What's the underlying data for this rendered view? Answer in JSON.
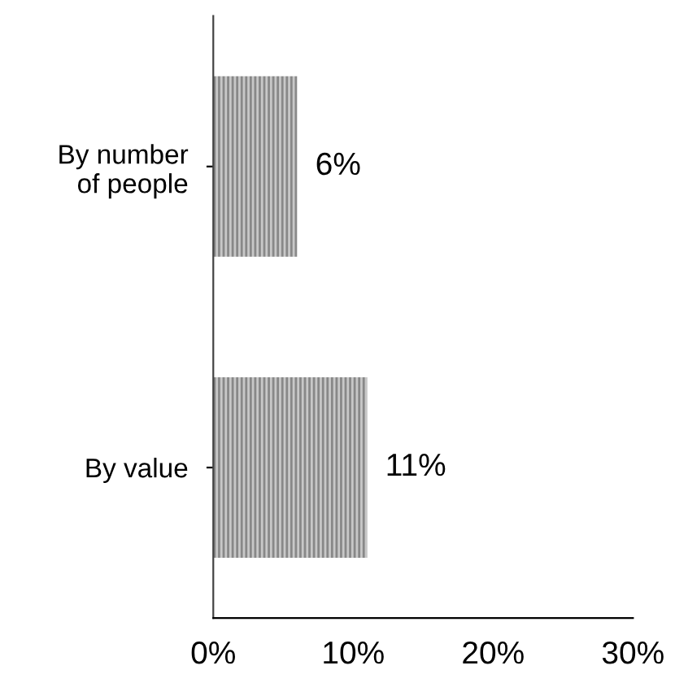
{
  "chart_data": {
    "type": "bar",
    "orientation": "horizontal",
    "categories": [
      "By number\nof people",
      "By value"
    ],
    "values": [
      6,
      11
    ],
    "value_labels": [
      "6%",
      "11%"
    ],
    "color": "#c8c8c8",
    "xlim": [
      0,
      30
    ],
    "xticks": [
      {
        "value": 0,
        "label": "0%"
      },
      {
        "value": 10,
        "label": "10%"
      },
      {
        "value": 20,
        "label": "20%"
      },
      {
        "value": 30,
        "label": "30%"
      }
    ],
    "grid": false,
    "legend": false
  }
}
